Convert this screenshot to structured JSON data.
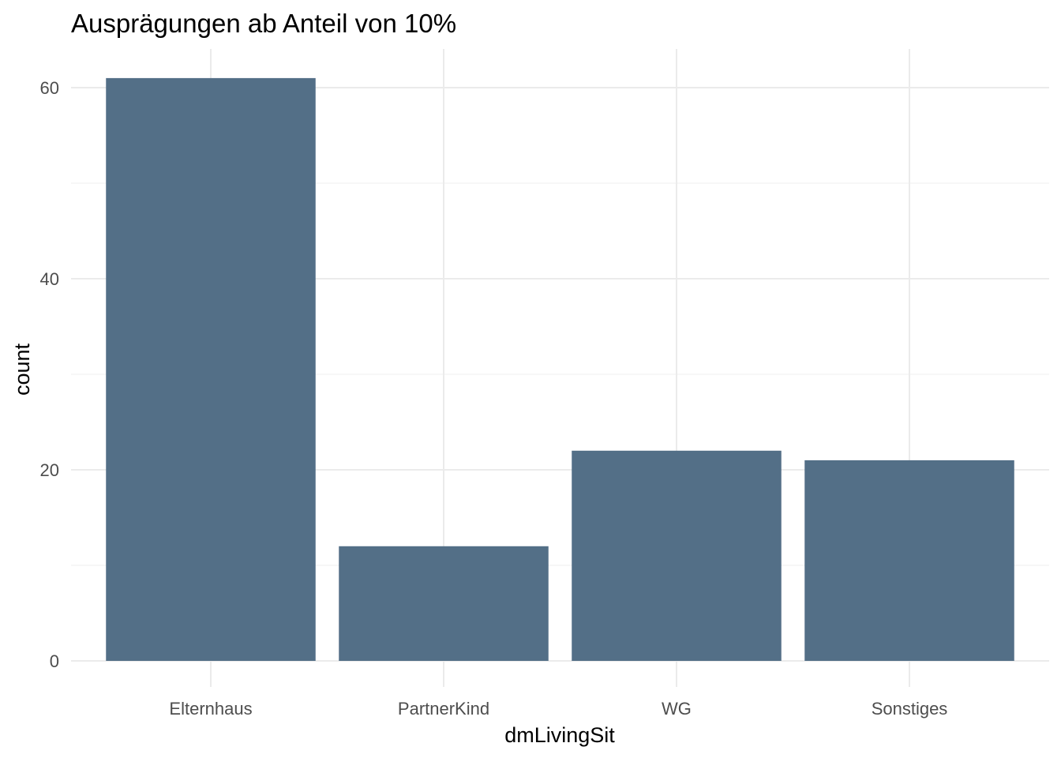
{
  "chart_data": {
    "type": "bar",
    "title": "Ausprägungen ab Anteil von 10%",
    "xlabel": "dmLivingSit",
    "ylabel": "count",
    "categories": [
      "Elternhaus",
      "PartnerKind",
      "WG",
      "Sonstiges"
    ],
    "values": [
      61,
      12,
      22,
      21
    ],
    "ylim": [
      0,
      63
    ],
    "yticks": [
      0,
      20,
      40,
      60
    ],
    "grid": true,
    "legend": "none",
    "bar_color": "#536f87"
  }
}
